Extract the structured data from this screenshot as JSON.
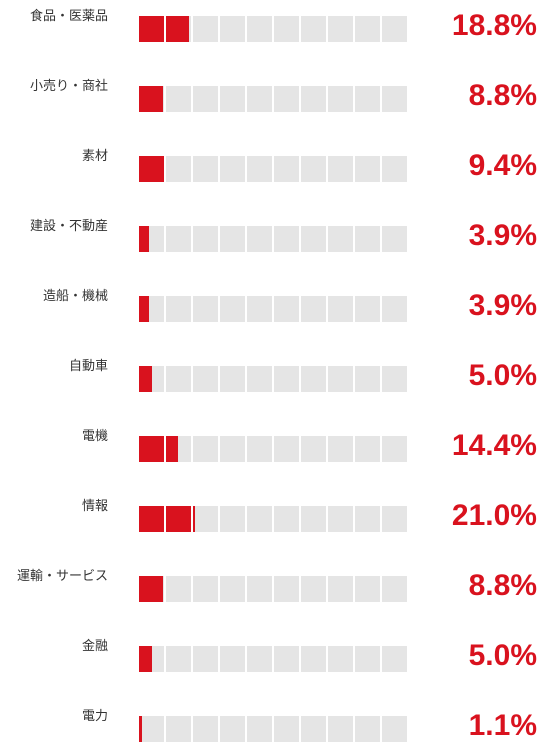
{
  "chart_data": {
    "type": "bar",
    "orientation": "horizontal",
    "title": "",
    "xlabel": "",
    "ylabel": "",
    "xlim": [
      0,
      100
    ],
    "grid": false,
    "legend": "none",
    "segments": 10,
    "categories": [
      "食品・医薬品",
      "小売り・商社",
      "素材",
      "建設・不動産",
      "造船・機械",
      "自動車",
      "電機",
      "情報",
      "運輸・サービス",
      "金融",
      "電力"
    ],
    "values": [
      18.8,
      8.8,
      9.4,
      3.9,
      3.9,
      5.0,
      14.4,
      21.0,
      8.8,
      5.0,
      1.1
    ],
    "value_labels": [
      "18.8%",
      "8.8%",
      "9.4%",
      "3.9%",
      "3.9%",
      "5.0%",
      "14.4%",
      "21.0%",
      "8.8%",
      "5.0%",
      "1.1%"
    ],
    "colors": {
      "fill": "#d9121e",
      "track": "#e5e5e5",
      "value_text": "#d9121e",
      "label_text": "#333333"
    }
  }
}
